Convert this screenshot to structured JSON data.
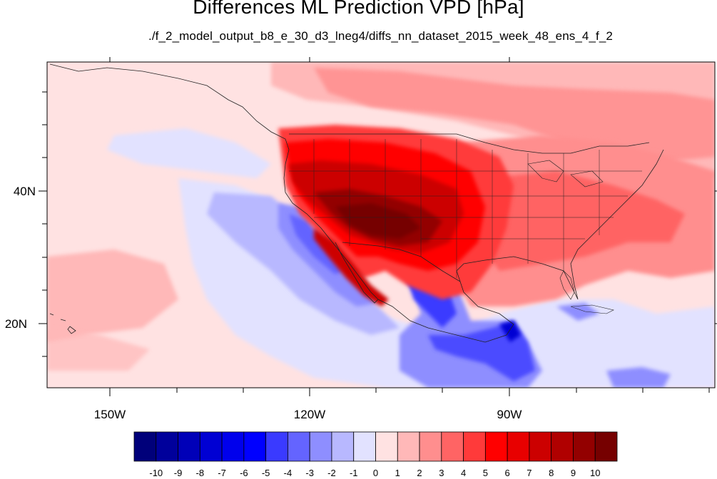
{
  "title": "Differences ML Prediction VPD [hPa]",
  "subtitle": "./f_2_model_output_b8_e_30_d3_lneg4/diffs_nn_dataset_2015_week_48_ens_4_f_2",
  "map": {
    "lat_labels": [
      "40N",
      "20N"
    ],
    "lon_labels": [
      "150W",
      "120W",
      "90W"
    ]
  },
  "colorbar": {
    "labels": [
      "-10",
      "-9",
      "-8",
      "-7",
      "-6",
      "-5",
      "-4",
      "-3",
      "-2",
      "-1",
      "0",
      "1",
      "2",
      "3",
      "4",
      "5",
      "6",
      "7",
      "8",
      "9",
      "10"
    ],
    "colors": [
      "#00007a",
      "#00009b",
      "#0000b8",
      "#0000d3",
      "#0000ec",
      "#0000ff",
      "#3a3aff",
      "#6464ff",
      "#8e8eff",
      "#b8b8ff",
      "#e2e2ff",
      "#ffe2e2",
      "#ffb8b8",
      "#ff8e8e",
      "#ff6464",
      "#ff3a3a",
      "#ff0000",
      "#e80000",
      "#cc0000",
      "#b00000",
      "#930000",
      "#760000"
    ]
  }
}
